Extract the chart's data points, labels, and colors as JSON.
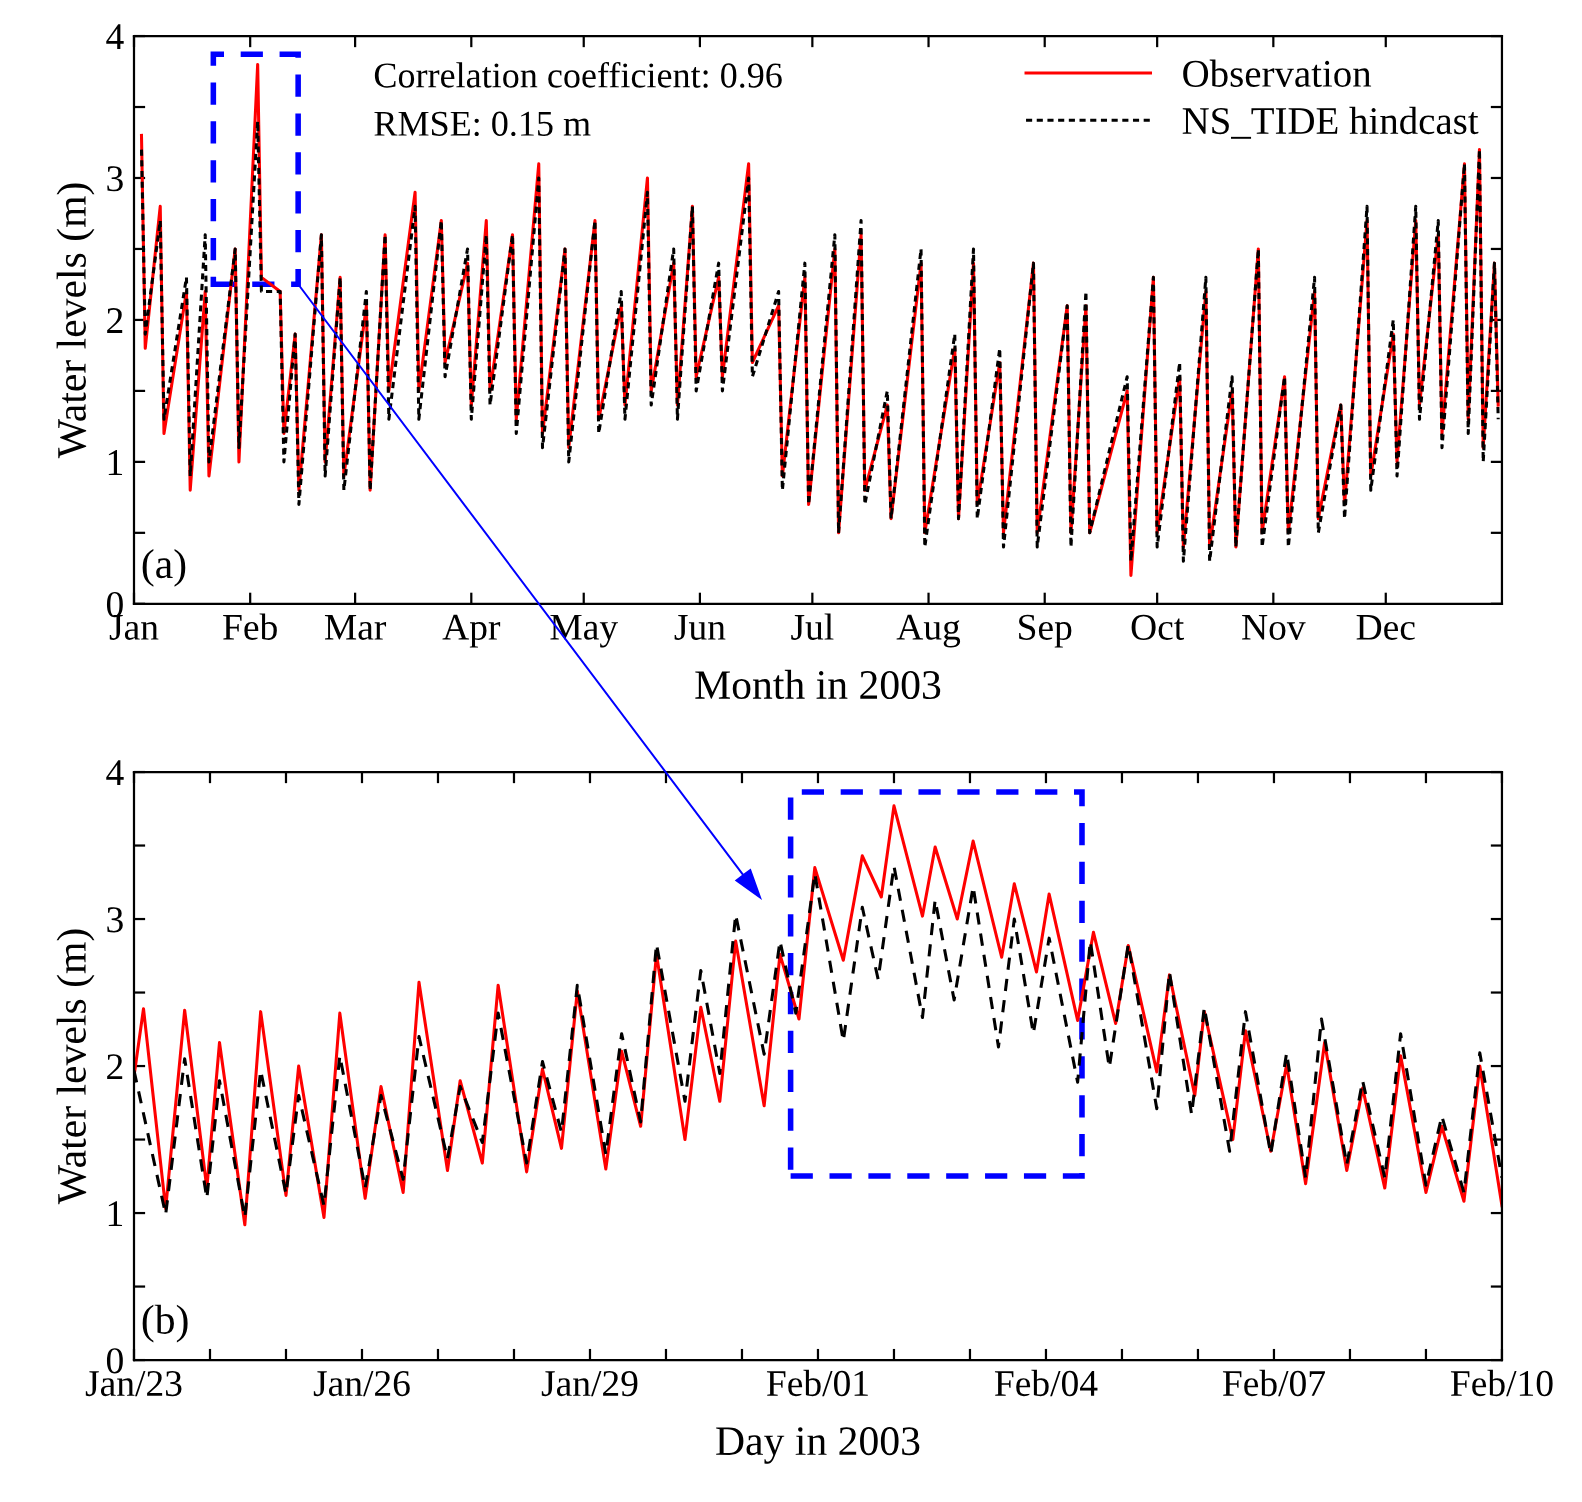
{
  "chart_data": [
    {
      "type": "line",
      "xlabel": "Month in 2003",
      "ylabel": "Water levels (m)",
      "xlim": [
        "2003-01-01",
        "2004-01-01"
      ],
      "ylim": [
        0,
        4
      ],
      "xticks": [
        {
          "value": "2003-01-01",
          "label": "Jan"
        },
        {
          "value": "2003-02-01",
          "label": "Feb"
        },
        {
          "value": "2003-03-01",
          "label": "Mar"
        },
        {
          "value": "2003-04-01",
          "label": "Apr"
        },
        {
          "value": "2003-05-01",
          "label": "May"
        },
        {
          "value": "2003-06-01",
          "label": "Jun"
        },
        {
          "value": "2003-07-01",
          "label": "Jul"
        },
        {
          "value": "2003-08-01",
          "label": "Aug"
        },
        {
          "value": "2003-09-01",
          "label": "Sep"
        },
        {
          "value": "2003-10-01",
          "label": "Oct"
        },
        {
          "value": "2003-11-01",
          "label": "Nov"
        },
        {
          "value": "2003-12-01",
          "label": "Dec"
        }
      ],
      "yticks": [
        0,
        {
          "value": 0.5,
          "label": null
        },
        1,
        {
          "value": 1.5,
          "label": null
        },
        2,
        {
          "value": 2.5,
          "label": null
        },
        3,
        {
          "value": 3.5,
          "label": null
        },
        4
      ],
      "x": [
        "2003-01-03",
        "2003-01-04",
        "2003-01-08",
        "2003-01-09",
        "2003-01-15",
        "2003-01-16",
        "2003-01-20",
        "2003-01-21",
        "2003-01-28",
        "2003-01-29",
        "2003-02-03",
        "2003-02-04",
        "2003-02-09",
        "2003-02-10",
        "2003-02-13",
        "2003-02-14",
        "2003-02-20",
        "2003-02-21",
        "2003-02-25",
        "2003-02-26",
        "2003-03-04",
        "2003-03-05",
        "2003-03-09",
        "2003-03-10",
        "2003-03-17",
        "2003-03-18",
        "2003-03-24",
        "2003-03-25",
        "2003-03-31",
        "2003-04-01",
        "2003-04-05",
        "2003-04-06",
        "2003-04-12",
        "2003-04-13",
        "2003-04-19",
        "2003-04-20",
        "2003-04-26",
        "2003-04-27",
        "2003-05-04",
        "2003-05-05",
        "2003-05-11",
        "2003-05-12",
        "2003-05-18",
        "2003-05-19",
        "2003-05-25",
        "2003-05-26",
        "2003-05-30",
        "2003-05-31",
        "2003-06-06",
        "2003-06-07",
        "2003-06-14",
        "2003-06-15",
        "2003-06-22",
        "2003-06-23",
        "2003-06-29",
        "2003-06-30",
        "2003-07-07",
        "2003-07-08",
        "2003-07-14",
        "2003-07-15",
        "2003-07-21",
        "2003-07-22",
        "2003-07-30",
        "2003-07-31",
        "2003-08-08",
        "2003-08-09",
        "2003-08-13",
        "2003-08-14",
        "2003-08-20",
        "2003-08-21",
        "2003-08-29",
        "2003-08-30",
        "2003-09-07",
        "2003-09-08",
        "2003-09-12",
        "2003-09-13",
        "2003-09-23",
        "2003-09-24",
        "2003-09-30",
        "2003-10-01",
        "2003-10-07",
        "2003-10-08",
        "2003-10-14",
        "2003-10-15",
        "2003-10-21",
        "2003-10-22",
        "2003-10-28",
        "2003-10-29",
        "2003-11-04",
        "2003-11-05",
        "2003-11-12",
        "2003-11-13",
        "2003-11-19",
        "2003-11-20",
        "2003-11-26",
        "2003-11-27",
        "2003-12-03",
        "2003-12-04",
        "2003-12-09",
        "2003-12-10",
        "2003-12-15",
        "2003-12-16",
        "2003-12-22",
        "2003-12-23",
        "2003-12-26",
        "2003-12-27",
        "2003-12-30",
        "2003-12-31"
      ],
      "series": [
        {
          "name": "Observation",
          "color": "#ff0000",
          "line_style": "solid",
          "values": [
            3.3,
            1.8,
            2.8,
            1.2,
            2.2,
            0.8,
            2.2,
            0.9,
            2.5,
            1.0,
            3.8,
            2.3,
            2.2,
            1.2,
            1.9,
            0.8,
            2.6,
            1.0,
            2.3,
            0.9,
            2.1,
            0.8,
            2.6,
            1.5,
            2.9,
            1.5,
            2.7,
            1.7,
            2.4,
            1.4,
            2.7,
            1.5,
            2.6,
            1.3,
            3.1,
            1.2,
            2.5,
            1.1,
            2.7,
            1.3,
            2.1,
            1.4,
            3.0,
            1.5,
            2.4,
            1.4,
            2.8,
            1.6,
            2.3,
            1.6,
            3.1,
            1.7,
            2.1,
            0.9,
            2.3,
            0.7,
            2.5,
            0.5,
            2.6,
            0.8,
            1.4,
            0.6,
            2.4,
            0.5,
            1.8,
            0.6,
            2.4,
            0.7,
            1.7,
            0.5,
            2.4,
            0.5,
            2.1,
            0.5,
            2.1,
            0.5,
            1.5,
            0.2,
            2.3,
            0.5,
            1.6,
            0.4,
            2.2,
            0.4,
            1.5,
            0.4,
            2.5,
            0.5,
            1.6,
            0.5,
            2.2,
            0.6,
            1.4,
            0.7,
            2.7,
            0.9,
            1.9,
            1.0,
            2.7,
            1.4,
            2.6,
            1.2,
            3.1,
            1.3,
            3.2,
            1.1,
            2.4,
            1.4
          ]
        },
        {
          "name": "NS_TIDE hindcast",
          "color": "#000000",
          "line_style": "dotted",
          "values": [
            3.2,
            1.9,
            2.7,
            1.3,
            2.3,
            0.9,
            2.6,
            1.0,
            2.5,
            1.1,
            3.4,
            2.2,
            2.2,
            1.0,
            1.9,
            0.7,
            2.6,
            0.9,
            2.3,
            0.8,
            2.2,
            0.8,
            2.6,
            1.3,
            2.8,
            1.3,
            2.7,
            1.6,
            2.5,
            1.3,
            2.6,
            1.4,
            2.6,
            1.2,
            3.0,
            1.1,
            2.5,
            1.0,
            2.7,
            1.2,
            2.2,
            1.3,
            2.9,
            1.4,
            2.5,
            1.3,
            2.8,
            1.5,
            2.4,
            1.5,
            3.0,
            1.6,
            2.2,
            0.8,
            2.4,
            0.7,
            2.6,
            0.5,
            2.7,
            0.7,
            1.5,
            0.6,
            2.5,
            0.4,
            1.9,
            0.6,
            2.5,
            0.6,
            1.8,
            0.4,
            2.4,
            0.4,
            2.1,
            0.4,
            2.2,
            0.5,
            1.6,
            0.3,
            2.3,
            0.4,
            1.7,
            0.3,
            2.3,
            0.3,
            1.6,
            0.4,
            2.5,
            0.4,
            1.6,
            0.4,
            2.3,
            0.5,
            1.4,
            0.6,
            2.8,
            0.8,
            2.0,
            0.9,
            2.8,
            1.3,
            2.7,
            1.1,
            3.1,
            1.2,
            3.2,
            1.0,
            2.4,
            1.3
          ]
        }
      ],
      "legend": "top right",
      "grid": false,
      "annotations": [
        "Correlation coefficient: 0.96",
        "RMSE: 0.15 m",
        "(a)"
      ]
    },
    {
      "type": "line",
      "xlabel": "Day in 2003",
      "ylabel": "Water levels (m)",
      "xlim": [
        "2003-01-23",
        "2003-02-10"
      ],
      "ylim": [
        0,
        4
      ],
      "xticks": [
        {
          "value": "2003-01-23",
          "label": "Jan/23"
        },
        {
          "value": "2003-01-24",
          "label": null
        },
        {
          "value": "2003-01-25",
          "label": null
        },
        {
          "value": "2003-01-26",
          "label": "Jan/26"
        },
        {
          "value": "2003-01-27",
          "label": null
        },
        {
          "value": "2003-01-28",
          "label": null
        },
        {
          "value": "2003-01-29",
          "label": "Jan/29"
        },
        {
          "value": "2003-01-30",
          "label": null
        },
        {
          "value": "2003-01-31",
          "label": null
        },
        {
          "value": "2003-02-01",
          "label": "Feb/01"
        },
        {
          "value": "2003-02-02",
          "label": null
        },
        {
          "value": "2003-02-03",
          "label": null
        },
        {
          "value": "2003-02-04",
          "label": "Feb/04"
        },
        {
          "value": "2003-02-05",
          "label": null
        },
        {
          "value": "2003-02-06",
          "label": null
        },
        {
          "value": "2003-02-07",
          "label": "Feb/07"
        },
        {
          "value": "2003-02-08",
          "label": null
        },
        {
          "value": "2003-02-09",
          "label": null
        },
        {
          "value": "2003-02-10",
          "label": "Feb/10"
        }
      ],
      "yticks": [
        0,
        {
          "value": 0.5,
          "label": null
        },
        1,
        {
          "value": 1.5,
          "label": null
        },
        2,
        {
          "value": 2.5,
          "label": null
        },
        3,
        {
          "value": 3.5,
          "label": null
        },
        4
      ],
      "series": [
        {
          "color": "#ff0000",
          "line_style": "solid",
          "x": [
            "2003-01-23T00:00",
            "2003-01-23T03:00",
            "2003-01-23T10:00",
            "2003-01-23T16:00",
            "2003-01-23T23:00",
            "2003-01-24T03:00",
            "2003-01-24T11:00",
            "2003-01-24T16:00",
            "2003-01-25T00:00",
            "2003-01-25T04:00",
            "2003-01-25T12:00",
            "2003-01-25T17:00",
            "2003-01-26T01:00",
            "2003-01-26T06:00",
            "2003-01-26T13:00",
            "2003-01-26T18:00",
            "2003-01-27T03:00",
            "2003-01-27T07:00",
            "2003-01-27T14:00",
            "2003-01-27T19:00",
            "2003-01-28T04:00",
            "2003-01-28T09:00",
            "2003-01-28T15:00",
            "2003-01-28T20:00",
            "2003-01-29T05:00",
            "2003-01-29T10:00",
            "2003-01-29T16:00",
            "2003-01-29T21:00",
            "2003-01-30T06:00",
            "2003-01-30T11:00",
            "2003-01-30T17:00",
            "2003-01-30T22:00",
            "2003-01-31T07:00",
            "2003-01-31T12:00",
            "2003-01-31T18:00",
            "2003-01-31T23:00",
            "2003-02-01T08:00",
            "2003-02-01T14:00",
            "2003-02-01T20:00",
            "2003-02-02T00:00",
            "2003-02-02T09:00",
            "2003-02-02T13:00",
            "2003-02-02T20:00",
            "2003-02-03T01:00",
            "2003-02-03T10:00",
            "2003-02-03T14:00",
            "2003-02-03T21:00",
            "2003-02-04T01:00",
            "2003-02-04T10:00",
            "2003-02-04T15:00",
            "2003-02-04T22:00",
            "2003-02-05T02:00",
            "2003-02-05T11:00",
            "2003-02-05T15:00",
            "2003-02-05T23:00",
            "2003-02-06T02:00",
            "2003-02-06T11:00",
            "2003-02-06T15:00",
            "2003-02-06T23:00",
            "2003-02-07T04:00",
            "2003-02-07T10:00",
            "2003-02-07T16:00",
            "2003-02-07T23:00",
            "2003-02-08T04:00",
            "2003-02-08T11:00",
            "2003-02-08T16:00",
            "2003-02-09T00:00",
            "2003-02-09T05:00",
            "2003-02-09T12:00",
            "2003-02-09T17:00",
            "2003-02-10T00:00"
          ],
          "values": [
            1.93,
            2.39,
            1.03,
            2.38,
            1.17,
            2.16,
            0.92,
            2.37,
            1.12,
            2.0,
            0.97,
            2.36,
            1.1,
            1.86,
            1.14,
            2.57,
            1.29,
            1.9,
            1.34,
            2.55,
            1.28,
            1.98,
            1.44,
            2.51,
            1.3,
            2.1,
            1.59,
            2.76,
            1.5,
            2.4,
            1.76,
            2.85,
            1.73,
            2.76,
            2.32,
            3.35,
            2.72,
            3.43,
            3.15,
            3.77,
            3.02,
            3.49,
            3.0,
            3.53,
            2.74,
            3.24,
            2.64,
            3.17,
            2.31,
            2.91,
            2.29,
            2.82,
            1.96,
            2.62,
            1.8,
            2.37,
            1.5,
            2.24,
            1.42,
            2.01,
            1.2,
            2.16,
            1.29,
            1.85,
            1.17,
            2.07,
            1.14,
            1.59,
            1.08,
            2.0,
            1.05
          ]
        },
        {
          "color": "#000000",
          "line_style": "dashed",
          "x": [
            "2003-01-23T00:00",
            "2003-01-23T10:00",
            "2003-01-23T16:00",
            "2003-01-23T23:00",
            "2003-01-24T03:00",
            "2003-01-24T11:00",
            "2003-01-24T16:00",
            "2003-01-25T00:00",
            "2003-01-25T04:00",
            "2003-01-25T12:00",
            "2003-01-25T17:00",
            "2003-01-26T01:00",
            "2003-01-26T06:00",
            "2003-01-26T13:00",
            "2003-01-26T18:00",
            "2003-01-27T03:00",
            "2003-01-27T07:00",
            "2003-01-27T14:00",
            "2003-01-27T19:00",
            "2003-01-28T04:00",
            "2003-01-28T09:00",
            "2003-01-28T15:00",
            "2003-01-28T20:00",
            "2003-01-29T05:00",
            "2003-01-29T10:00",
            "2003-01-29T16:00",
            "2003-01-29T21:00",
            "2003-01-30T06:00",
            "2003-01-30T11:00",
            "2003-01-30T17:00",
            "2003-01-30T22:00",
            "2003-01-31T07:00",
            "2003-01-31T12:00",
            "2003-01-31T17:00",
            "2003-01-31T23:00",
            "2003-02-01T08:00",
            "2003-02-01T14:00",
            "2003-02-01T19:00",
            "2003-02-02T00:00",
            "2003-02-02T09:00",
            "2003-02-02T13:00",
            "2003-02-02T19:00",
            "2003-02-03T01:00",
            "2003-02-03T09:00",
            "2003-02-03T14:00",
            "2003-02-03T20:00",
            "2003-02-04T01:00",
            "2003-02-04T10:00",
            "2003-02-04T14:00",
            "2003-02-04T20:00",
            "2003-02-05T02:00",
            "2003-02-05T11:00",
            "2003-02-05T15:00",
            "2003-02-05T22:00",
            "2003-02-06T02:00",
            "2003-02-06T10:00",
            "2003-02-06T15:00",
            "2003-02-06T23:00",
            "2003-02-07T04:00",
            "2003-02-07T10:00",
            "2003-02-07T15:00",
            "2003-02-07T23:00",
            "2003-02-08T04:00",
            "2003-02-08T11:00",
            "2003-02-08T16:00",
            "2003-02-09T00:00",
            "2003-02-09T05:00",
            "2003-02-09T12:00",
            "2003-02-09T17:00",
            "2003-02-10T00:00"
          ],
          "values": [
            1.97,
            0.99,
            2.05,
            1.1,
            1.9,
            0.97,
            1.97,
            1.13,
            1.8,
            1.05,
            2.07,
            1.17,
            1.8,
            1.23,
            2.2,
            1.37,
            1.86,
            1.48,
            2.36,
            1.34,
            2.03,
            1.55,
            2.55,
            1.4,
            2.22,
            1.62,
            2.83,
            1.76,
            2.65,
            1.95,
            3.03,
            2.08,
            2.85,
            2.36,
            3.31,
            2.17,
            3.08,
            2.59,
            3.36,
            2.33,
            3.13,
            2.45,
            3.22,
            2.13,
            3.0,
            2.22,
            2.87,
            1.89,
            2.85,
            1.99,
            2.83,
            1.71,
            2.64,
            1.67,
            2.4,
            1.42,
            2.37,
            1.4,
            2.09,
            1.24,
            2.32,
            1.33,
            1.9,
            1.24,
            2.22,
            1.19,
            1.66,
            1.14,
            2.09,
            1.24
          ]
        }
      ],
      "legend": false,
      "grid": false,
      "annotations": [
        "(b)"
      ]
    }
  ]
}
